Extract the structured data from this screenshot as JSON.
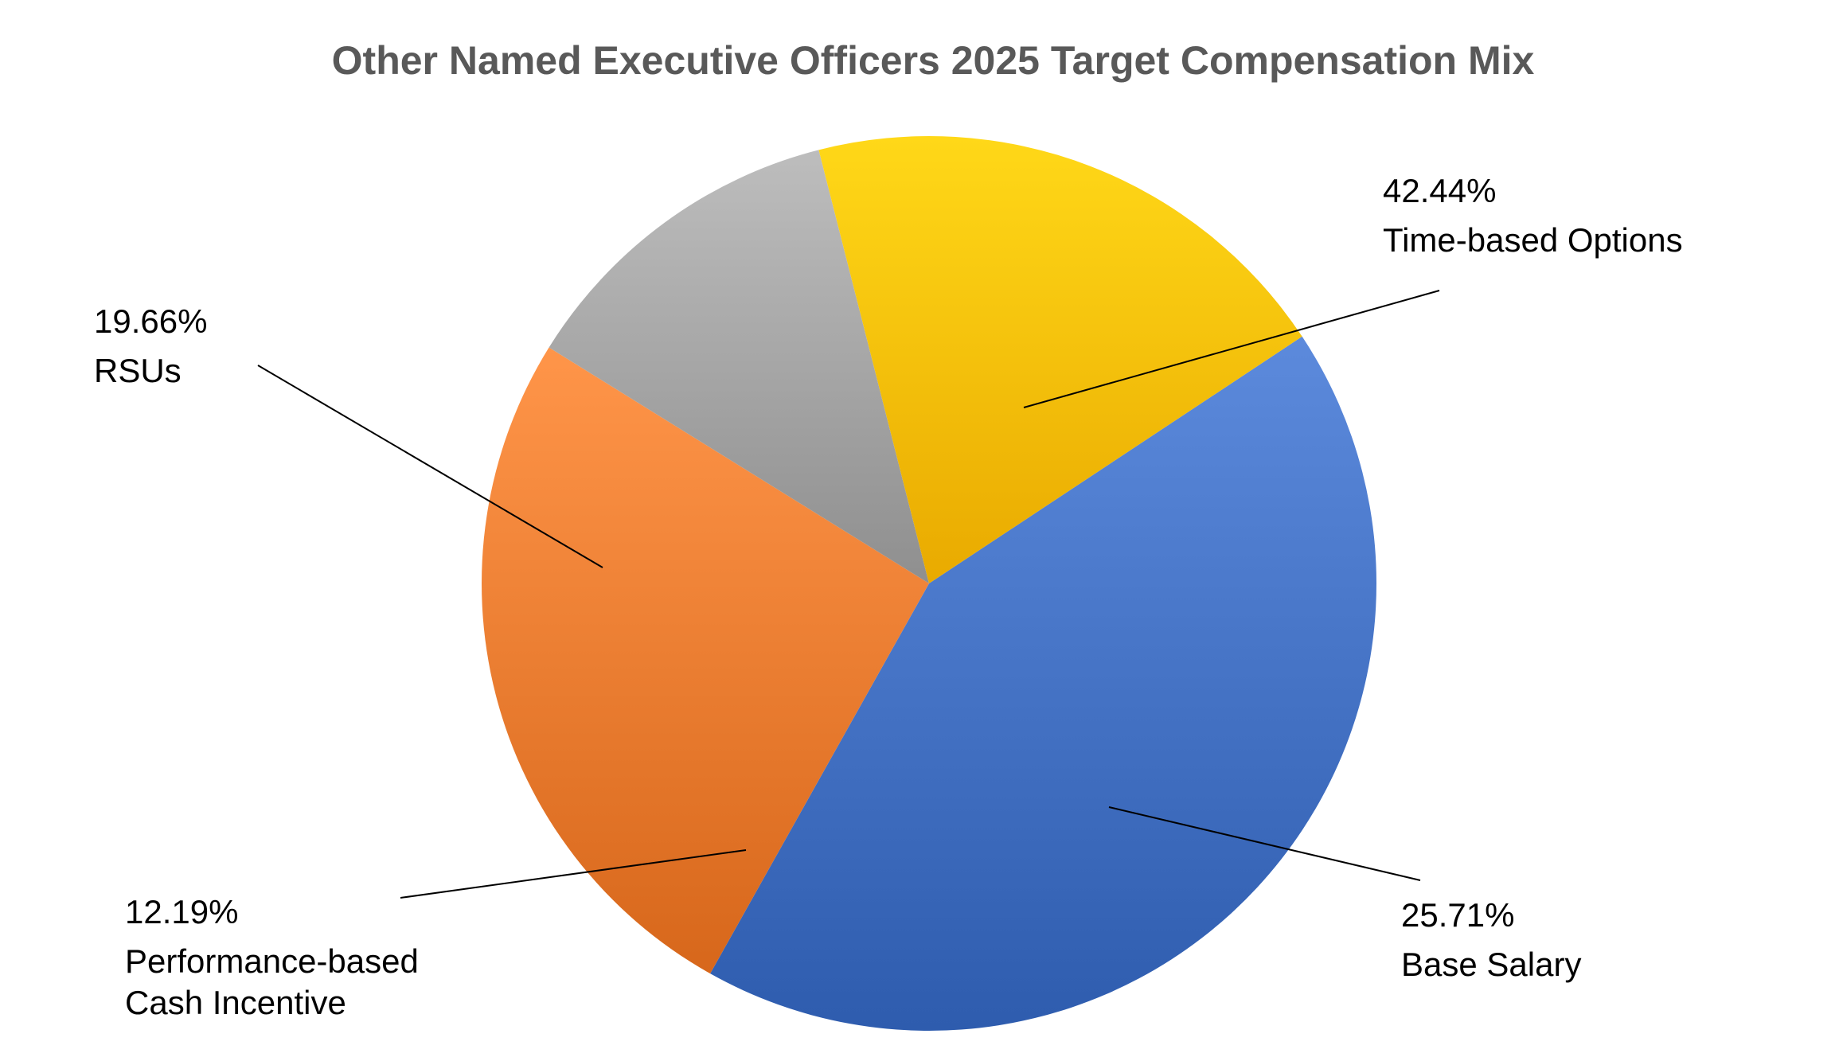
{
  "chart_data": {
    "type": "pie",
    "title": "Other Named Executive Officers 2025 Target Compensation Mix",
    "slices": [
      {
        "label": "Time-based Options",
        "label_lines": [
          "Time-based Options"
        ],
        "value": 42.44,
        "value_text": "42.44%",
        "color": "#4472C4"
      },
      {
        "label": "Base Salary",
        "label_lines": [
          "Base Salary"
        ],
        "value": 25.71,
        "value_text": "25.71%",
        "color": "#ED7D31"
      },
      {
        "label": "Performance-based Cash Incentive",
        "label_lines": [
          "Performance-based",
          "Cash Incentive"
        ],
        "value": 12.19,
        "value_text": "12.19%",
        "color": "#A5A5A5"
      },
      {
        "label": "RSUs",
        "label_lines": [
          "RSUs"
        ],
        "value": 19.66,
        "value_text": "19.66%",
        "color": "#FFC000"
      }
    ],
    "legend": "none",
    "data_labels": "outside-with-leader-lines"
  }
}
